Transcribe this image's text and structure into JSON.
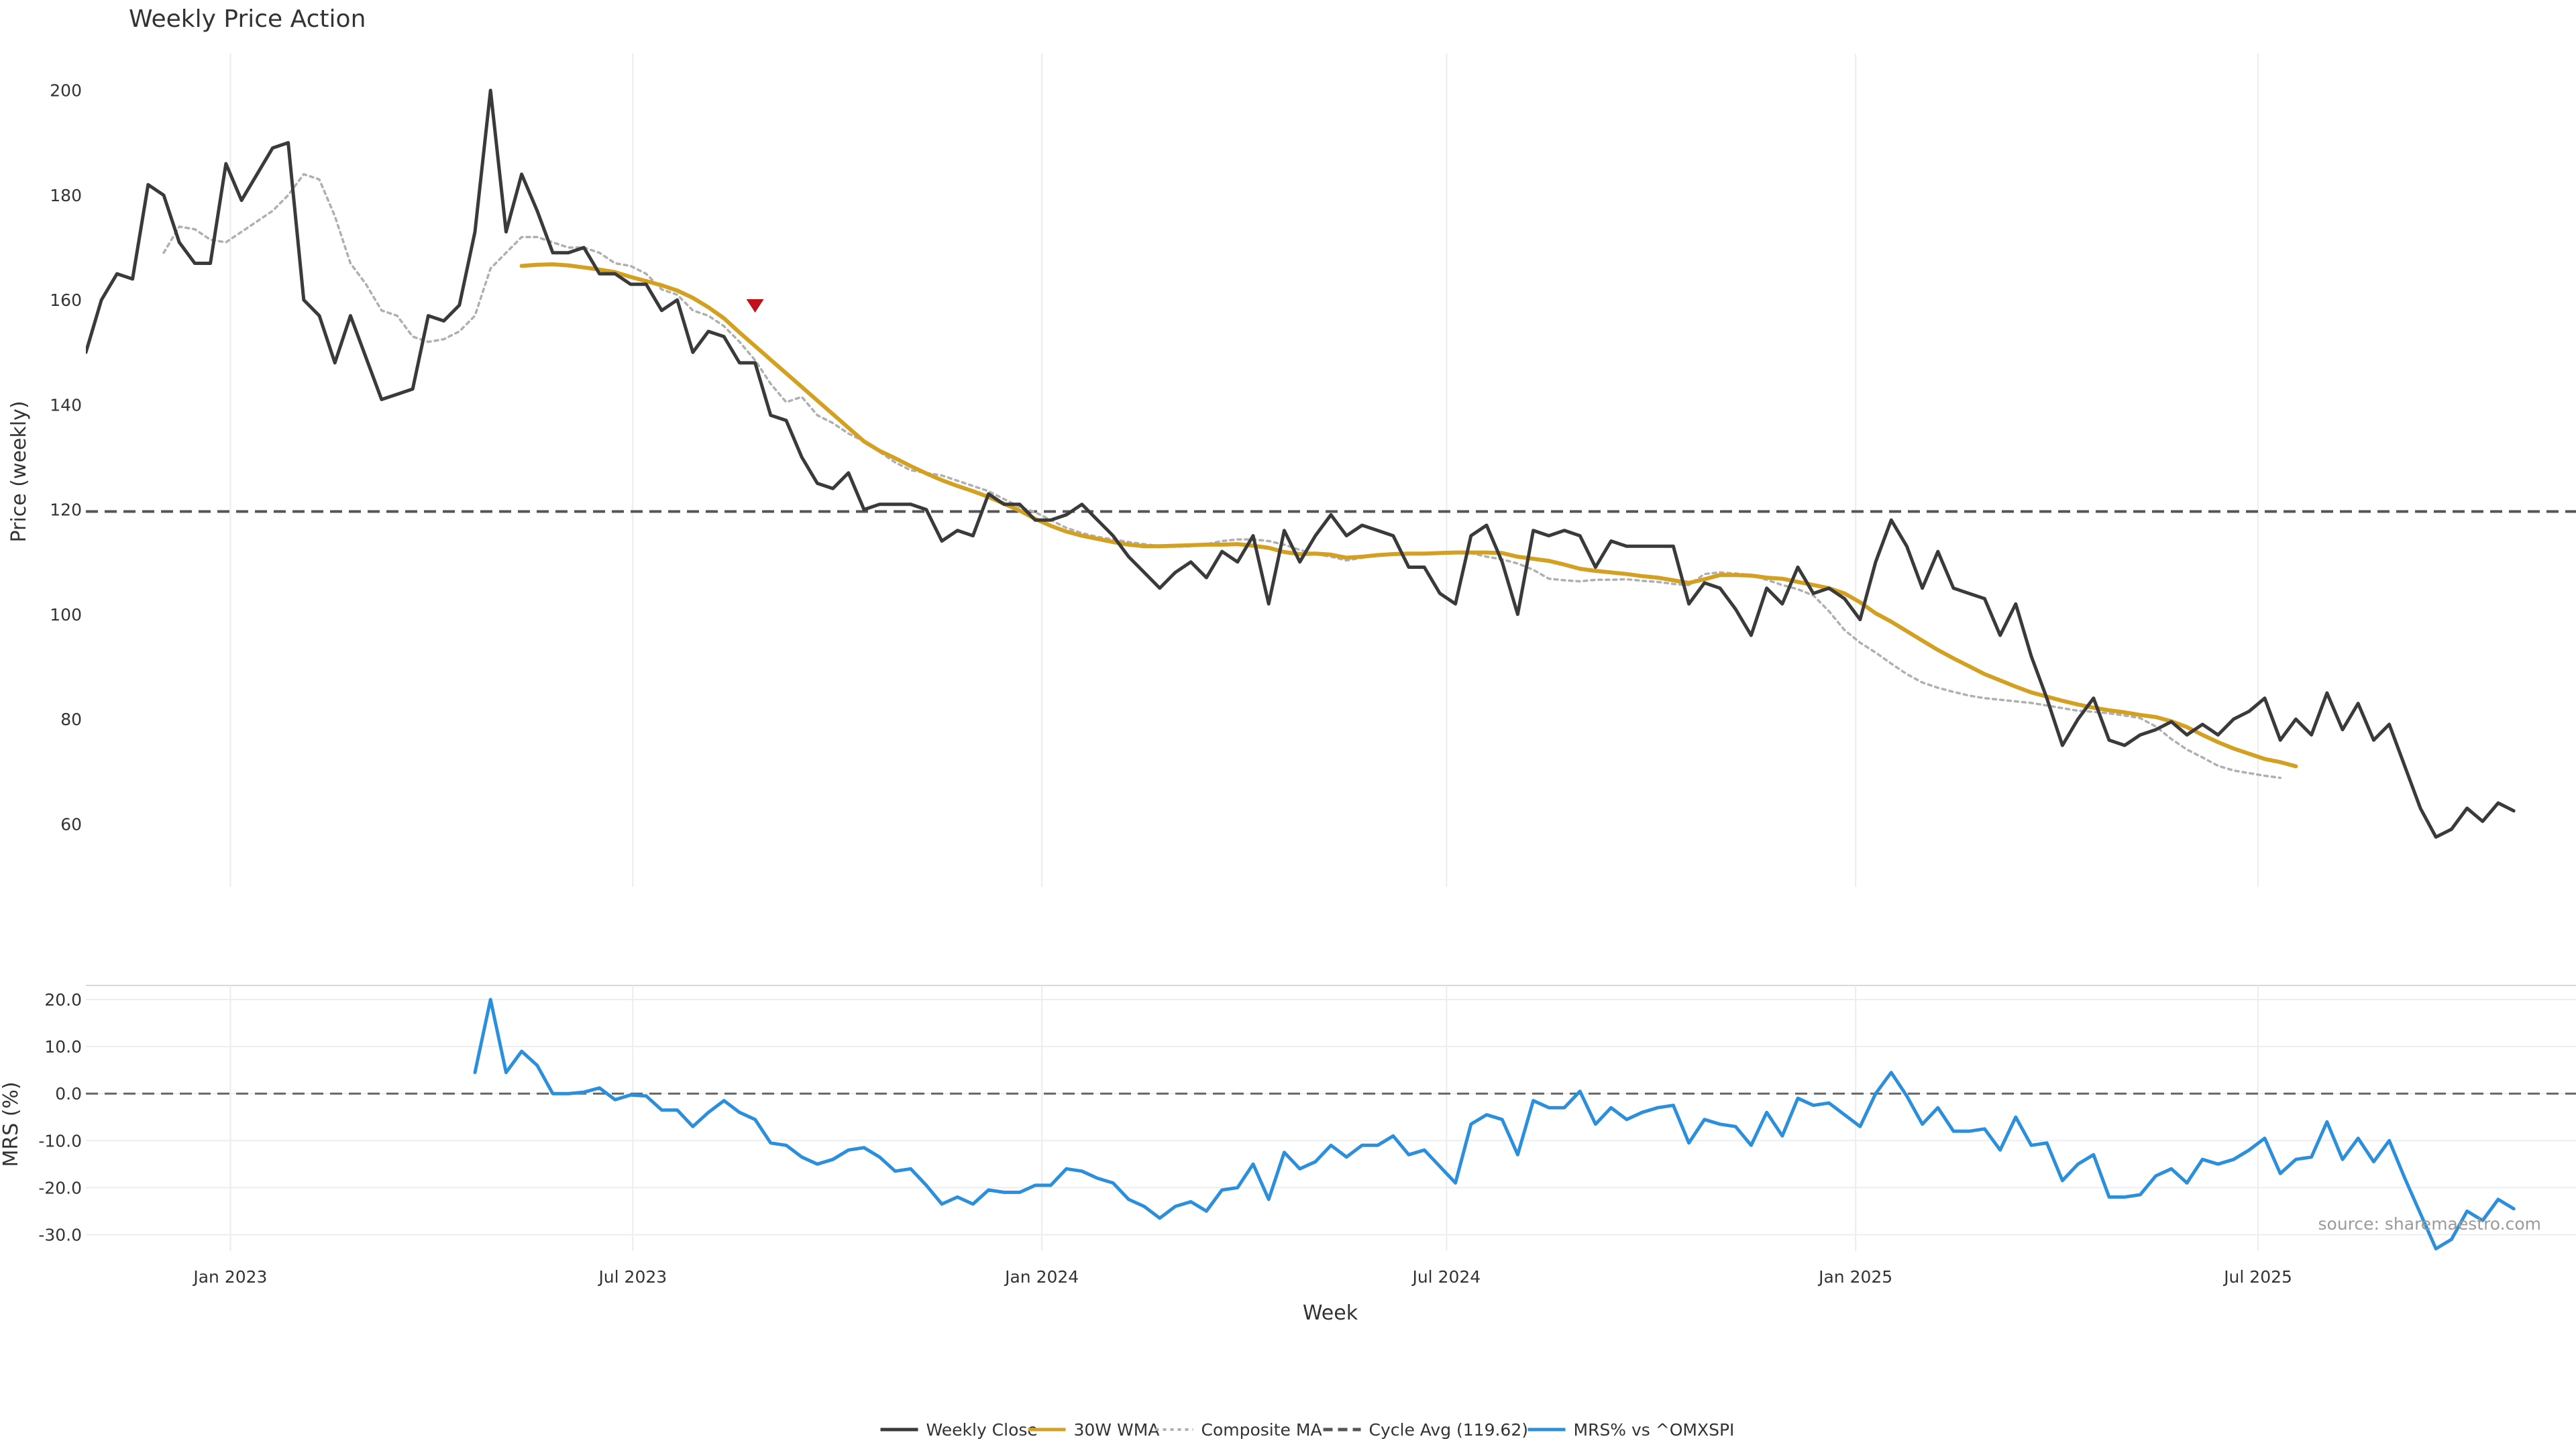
{
  "chart_data": {
    "type": "line",
    "title": "Weekly Price Action",
    "xlabel": "Week",
    "source": "source: sharemaestro.com",
    "x_ticks": [
      "Jan 2023",
      "Jul 2023",
      "Jan 2024",
      "Jul 2024",
      "Jan 2025",
      "Jul 2025"
    ],
    "x_range": [
      "2022-10-28",
      "2025-11-21"
    ],
    "legend_placement": "bottom-center",
    "price_panel": {
      "ylabel": "Price (weekly)",
      "ylim": [
        48,
        207
      ],
      "y_ticks": [
        "200",
        "180",
        "160",
        "140",
        "120",
        "100",
        "80",
        "60"
      ],
      "y_tick_values": [
        200,
        180,
        160,
        140,
        120,
        100,
        80,
        60
      ],
      "cycle_avg": 119.62,
      "signal_marker": {
        "date": "2023-08-25",
        "value": 159
      },
      "series": [
        {
          "name": "Weekly Close",
          "color": "#3a3a3a",
          "style": "solid",
          "start": "2022-10-28",
          "interval_days": 7,
          "values": [
            150,
            160,
            165,
            164,
            182,
            180,
            171,
            167,
            167,
            186,
            179,
            184,
            189,
            190,
            160,
            157,
            148,
            157,
            149,
            141,
            142,
            143,
            157,
            156,
            159,
            173,
            200,
            173,
            184,
            177,
            169,
            169,
            170,
            165,
            165,
            163,
            163,
            158,
            160,
            150,
            154,
            153,
            148,
            148,
            138,
            137,
            130,
            125,
            124,
            127,
            120,
            121,
            121,
            121,
            120,
            114,
            116,
            115,
            123,
            121,
            121,
            118,
            118,
            119,
            121,
            118,
            115,
            111,
            108,
            105,
            108,
            110,
            107,
            112,
            110,
            115,
            102,
            116,
            110,
            115,
            119,
            115,
            117,
            116,
            115,
            109,
            109,
            104,
            102,
            115,
            117,
            110,
            100,
            116,
            115,
            116,
            115,
            109,
            114,
            113,
            113,
            113,
            113,
            102,
            106,
            105,
            101,
            96,
            105,
            102,
            109,
            104,
            105,
            103,
            99,
            110,
            118,
            113,
            105,
            112,
            105,
            104,
            103,
            96,
            102,
            92,
            84,
            75,
            80,
            84,
            76,
            75,
            77,
            78,
            79.5,
            77,
            79,
            77,
            80,
            81.5,
            84,
            76,
            80,
            77,
            85,
            78,
            83,
            76,
            79,
            71,
            63,
            57.5,
            59,
            63,
            60.5,
            64,
            62.5
          ]
        },
        {
          "name": "30W WMA",
          "color": "#d4a021",
          "style": "solid",
          "start": "2023-05-12",
          "interval_days": 7,
          "values": [
            166.5,
            166.7,
            166.8,
            166.6,
            166.2,
            165.8,
            165.3,
            164.4,
            163.6,
            162.8,
            161.8,
            160.4,
            158.6,
            156.5,
            153.8,
            151.2,
            148.6,
            146,
            143.4,
            140.8,
            138.2,
            135.6,
            133,
            131.2,
            129.8,
            128.3,
            126.9,
            125.6,
            124.5,
            123.5,
            122.4,
            121.1,
            119.8,
            118.2,
            116.9,
            115.8,
            115,
            114.4,
            113.8,
            113.3,
            113,
            113,
            113.1,
            113.2,
            113.3,
            113.3,
            113.4,
            113.1,
            112.7,
            111.9,
            111.5,
            111.6,
            111.4,
            110.8,
            111,
            111.3,
            111.5,
            111.6,
            111.6,
            111.7,
            111.8,
            111.8,
            111.8,
            111.7,
            111,
            110.6,
            110.2,
            109.5,
            108.7,
            108.3,
            108,
            107.7,
            107.3,
            107,
            106.5,
            106,
            106.7,
            107.5,
            107.5,
            107.4,
            107,
            106.8,
            106.2,
            105.6,
            105,
            104,
            102.3,
            100.2,
            98.6,
            96.8,
            95,
            93.2,
            91.6,
            90.1,
            88.6,
            87.4,
            86.2,
            85.1,
            84.3,
            83.5,
            82.8,
            82.2,
            81.7,
            81.3,
            80.8,
            80.4,
            79.6,
            78.5,
            77,
            75.6,
            74.4,
            73.4,
            72.4,
            71.8,
            71
          ]
        },
        {
          "name": "Composite MA",
          "color": "#b0b0b0",
          "style": "dotted",
          "start": "2022-12-02",
          "interval_days": 7,
          "values": [
            169,
            174,
            173.5,
            171.5,
            171,
            173,
            175,
            177,
            180,
            184,
            183,
            176,
            167,
            163,
            158,
            157,
            153,
            152,
            152.5,
            154,
            157,
            166,
            169,
            172,
            172,
            171,
            170,
            170,
            169,
            167,
            166.5,
            165,
            162,
            161,
            158,
            157,
            155,
            152,
            148.5,
            144,
            140.5,
            141.5,
            138,
            136.5,
            134.5,
            133,
            131,
            129,
            127.5,
            127,
            126.5,
            125.5,
            124.5,
            123.5,
            122,
            120.5,
            119.5,
            118,
            116.5,
            115.5,
            114.8,
            114.3,
            113.8,
            113.4,
            113,
            112.9,
            113,
            113.4,
            114,
            114.3,
            114.3,
            114,
            113.3,
            112.3,
            111.5,
            111,
            110.3,
            110.8,
            111.2,
            111.5,
            111.5,
            111.6,
            111.6,
            111.7,
            111.7,
            111,
            110.5,
            109.7,
            108.5,
            106.8,
            106.5,
            106.3,
            106.6,
            106.6,
            106.7,
            106.4,
            106.2,
            105.8,
            105.6,
            107.7,
            108,
            107.8,
            107.5,
            106.6,
            105.6,
            104.8,
            103.6,
            100.6,
            97,
            94.6,
            92.7,
            90.6,
            88.6,
            87,
            86,
            85.2,
            84.5,
            84,
            83.7,
            83.4,
            83.1,
            82.6,
            82.1,
            81.6,
            81.4,
            81.1,
            80.7,
            80.2,
            78.6,
            76.2,
            74.2,
            72.7,
            71.1,
            70.2,
            69.7,
            69.2,
            68.8
          ]
        },
        {
          "name": "Cycle Avg (119.62)",
          "color": "#555555",
          "style": "dashed"
        }
      ]
    },
    "mrs_panel": {
      "ylabel": "MRS (%)",
      "ylim": [
        -33.5,
        23
      ],
      "y_ticks": [
        "20.0",
        "10.0",
        "0.0",
        "-10.0",
        "-20.0",
        "-30.0"
      ],
      "y_tick_values": [
        20,
        10,
        0,
        -10,
        -20,
        -30
      ],
      "series": [
        {
          "name": "MRS% vs ^OMXSPI",
          "color": "#2b8fdb",
          "style": "solid",
          "start": "2023-04-21",
          "interval_days": 7,
          "values": [
            4.5,
            20,
            4.5,
            9,
            6,
            0,
            0,
            0.3,
            1.2,
            -1.3,
            -0.3,
            -0.5,
            -3.5,
            -3.5,
            -7,
            -4,
            -1.5,
            -4,
            -5.5,
            -10.5,
            -11,
            -13.5,
            -15,
            -14,
            -12,
            -11.5,
            -13.5,
            -16.5,
            -16,
            -19.5,
            -23.5,
            -22,
            -23.5,
            -20.5,
            -21,
            -21,
            -19.5,
            -19.5,
            -16,
            -16.5,
            -18,
            -19,
            -22.5,
            -24,
            -26.5,
            -24,
            -23,
            -25,
            -20.5,
            -20,
            -15,
            -22.5,
            -12.5,
            -16,
            -14.5,
            -11,
            -13.5,
            -11,
            -11,
            -9,
            -13,
            -12,
            -15.5,
            -19,
            -6.5,
            -4.5,
            -5.5,
            -13,
            -1.5,
            -3,
            -3,
            0.5,
            -6.5,
            -3,
            -5.5,
            -4,
            -3,
            -2.5,
            -10.5,
            -5.5,
            -6.5,
            -7,
            -11,
            -4,
            -9,
            -1,
            -2.5,
            -2,
            -4.5,
            -7,
            0,
            4.5,
            -0.5,
            -6.5,
            -3,
            -8,
            -8,
            -7.5,
            -12,
            -5,
            -11,
            -10.5,
            -18.5,
            -15,
            -13,
            -22,
            -22,
            -21.5,
            -17.5,
            -16,
            -19,
            -14,
            -15,
            -14,
            -12,
            -9.5,
            -17,
            -14,
            -13.5,
            -6,
            -14,
            -9.5,
            -14.5,
            -10,
            -18,
            -25.5,
            -33,
            -31,
            -25,
            -27,
            -22.5,
            -24.5
          ]
        }
      ]
    },
    "legend": [
      {
        "label": "Weekly Close",
        "color": "#3a3a3a",
        "style": "solid"
      },
      {
        "label": "30W WMA",
        "color": "#d4a021",
        "style": "solid"
      },
      {
        "label": "Composite MA",
        "color": "#b0b0b0",
        "style": "dotted"
      },
      {
        "label": "Cycle Avg (119.62)",
        "color": "#555555",
        "style": "dashed"
      },
      {
        "label": "MRS% vs ^OMXSPI",
        "color": "#2b8fdb",
        "style": "solid"
      }
    ]
  }
}
